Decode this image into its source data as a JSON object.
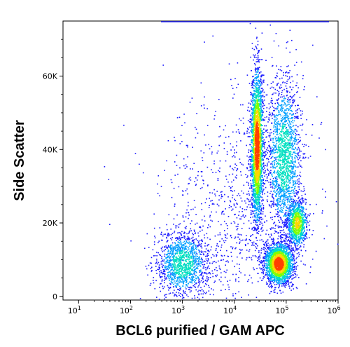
{
  "chart_data": {
    "type": "scatter",
    "subtype": "flow-cytometry-density-dot-plot",
    "title": "",
    "xlabel": "BCL6 purified / GAM APC",
    "ylabel": "Side Scatter",
    "x_scale": "log",
    "xlim": [
      5,
      1000000
    ],
    "ylim": [
      -1000,
      75000
    ],
    "grid": false,
    "legend": "none",
    "x_ticks": [
      {
        "value": 10,
        "base": "10",
        "exp": "1"
      },
      {
        "value": 100,
        "base": "10",
        "exp": "2"
      },
      {
        "value": 1000,
        "base": "10",
        "exp": "3"
      },
      {
        "value": 10000,
        "base": "10",
        "exp": "4"
      },
      {
        "value": 100000,
        "base": "10",
        "exp": "5"
      },
      {
        "value": 1000000,
        "base": "10",
        "exp": "6"
      }
    ],
    "y_ticks": [
      {
        "value": 0,
        "label": "0"
      },
      {
        "value": 20000,
        "label": "20K"
      },
      {
        "value": 40000,
        "label": "40K"
      },
      {
        "value": 60000,
        "label": "60K"
      }
    ],
    "density_colors": [
      "#1a1aff",
      "#00a0ff",
      "#00e0c0",
      "#7fff00",
      "#ffd700",
      "#ff4000"
    ],
    "populations": [
      {
        "x_log_center": 3.0,
        "x_log_spread": 0.25,
        "y_center": 9000,
        "y_spread": 4500,
        "count": 1300,
        "peak_density": 0.45
      },
      {
        "x_log_center": 4.43,
        "x_log_spread": 0.06,
        "y_center": 41000,
        "y_spread": 10500,
        "count": 2600,
        "peak_density": 1.0
      },
      {
        "x_log_center": 4.85,
        "x_log_spread": 0.14,
        "y_center": 9000,
        "y_spread": 2800,
        "count": 2100,
        "peak_density": 1.0
      },
      {
        "x_log_center": 5.2,
        "x_log_spread": 0.1,
        "y_center": 20000,
        "y_spread": 3200,
        "count": 900,
        "peak_density": 0.75
      },
      {
        "x_log_center": 4.95,
        "x_log_spread": 0.17,
        "y_center": 38000,
        "y_spread": 11000,
        "count": 1700,
        "peak_density": 0.45
      },
      {
        "x_log_center": 3.9,
        "x_log_spread": 0.7,
        "y_center": 22000,
        "y_spread": 17000,
        "count": 900,
        "peak_density": 0.15
      }
    ]
  }
}
